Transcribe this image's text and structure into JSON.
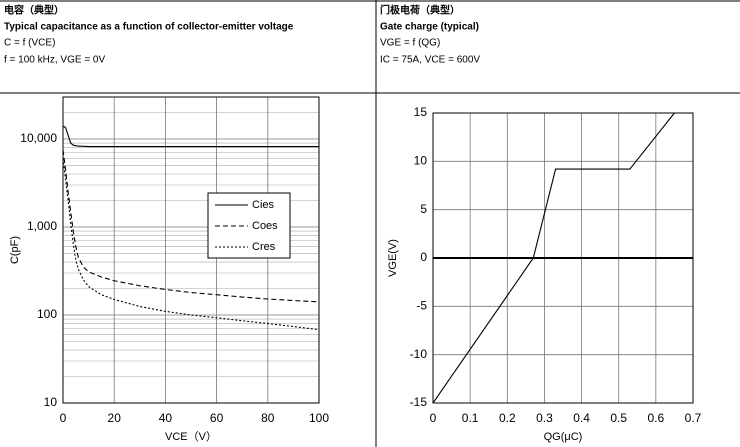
{
  "chart_data": [
    {
      "type": "line",
      "title": "电容（典型）",
      "subtitle": "Typical capacitance as a function of collector-emitter voltage",
      "annotations": [
        "C = f (VCE)",
        "f = 100 kHz, VGE = 0V"
      ],
      "x_label": "VCE（V）",
      "y_label": "C(pF)",
      "log_y": true,
      "grid": true,
      "minor_grid": true,
      "x": [
        0,
        1,
        2,
        3,
        4,
        5,
        6,
        8,
        10,
        15,
        20,
        30,
        40,
        50,
        60,
        70,
        80,
        90,
        100
      ],
      "series": [
        {
          "name": "Cies",
          "color": "#000000",
          "dash": "solid",
          "values": [
            14000,
            13500,
            11000,
            9000,
            8500,
            8400,
            8300,
            8250,
            8200,
            8200,
            8200,
            8200,
            8200,
            8200,
            8200,
            8200,
            8200,
            8200,
            8200
          ]
        },
        {
          "name": "Coes",
          "color": "#000000",
          "dash": "dashed",
          "values": [
            7500,
            4500,
            2500,
            1500,
            900,
            600,
            450,
            350,
            310,
            270,
            245,
            215,
            195,
            180,
            170,
            160,
            152,
            146,
            141
          ]
        },
        {
          "name": "Cres",
          "color": "#000000",
          "dash": "dotted",
          "values": [
            6000,
            3500,
            2000,
            1100,
            650,
            420,
            330,
            250,
            210,
            170,
            150,
            125,
            110,
            100,
            93,
            86,
            80,
            74,
            68
          ]
        }
      ],
      "xlim": [
        0,
        100
      ],
      "xticks": [
        0,
        20,
        40,
        60,
        80,
        100
      ],
      "ylim": [
        10,
        30000
      ],
      "yticks": [
        10,
        100,
        {
          "value": 1000,
          "label": "1,000"
        },
        {
          "value": 10000,
          "label": "10,000"
        }
      ]
    },
    {
      "type": "line",
      "title": "门极电荷（典型）",
      "subtitle": "Gate charge (typical)",
      "annotations": [
        "VGE = f (QG)",
        "IC = 75A, VCE = 600V"
      ],
      "x_label": "QG(μC)",
      "y_label": "VGE(V)",
      "log_y": false,
      "grid": true,
      "zero_line": true,
      "x": [
        0,
        0.27,
        0.33,
        0.53,
        0.65
      ],
      "series": [
        {
          "color": "#000000",
          "dash": "solid",
          "values": [
            -15,
            0,
            9.2,
            9.2,
            15
          ]
        }
      ],
      "xlim": [
        0,
        0.7
      ],
      "xticks": [
        0,
        0.1,
        0.2,
        0.3,
        0.4,
        0.5,
        0.6,
        0.7
      ],
      "ylim": [
        -15,
        15
      ],
      "yticks": [
        -15,
        -10,
        -5,
        0,
        5,
        10,
        15
      ]
    }
  ]
}
